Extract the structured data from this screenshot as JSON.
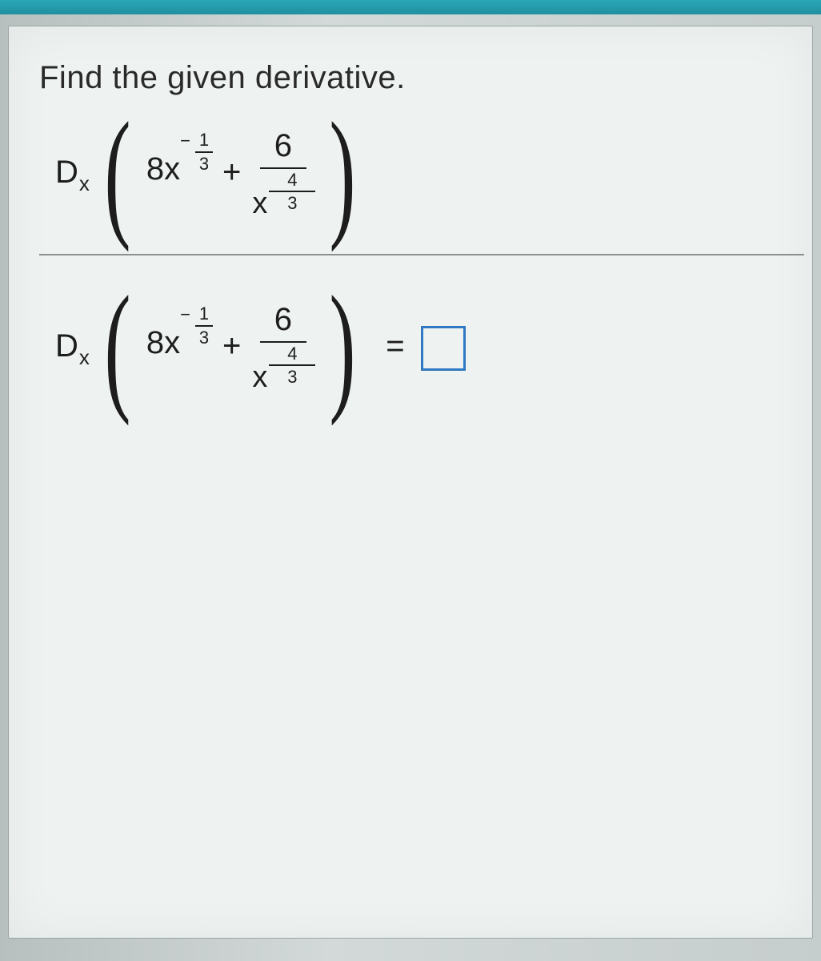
{
  "colors": {
    "topbar": "#1f98a8",
    "panel_bg": "#eef3f2",
    "panel_border": "#9aa4a4",
    "text": "#1d1d1d",
    "answer_box_border": "#2f78c2"
  },
  "prompt": "Find the given derivative.",
  "expression": {
    "operator_label": "D",
    "operator_sub": "x",
    "term1_coeff": "8x",
    "term1_exp_sign": "−",
    "term1_exp_num": "1",
    "term1_exp_den": "3",
    "plus": "+",
    "frac_num": "6",
    "frac_den_base": "x",
    "frac_den_exp_num": "4",
    "frac_den_exp_den": "3"
  },
  "equals": "=",
  "answer_placeholder": ""
}
